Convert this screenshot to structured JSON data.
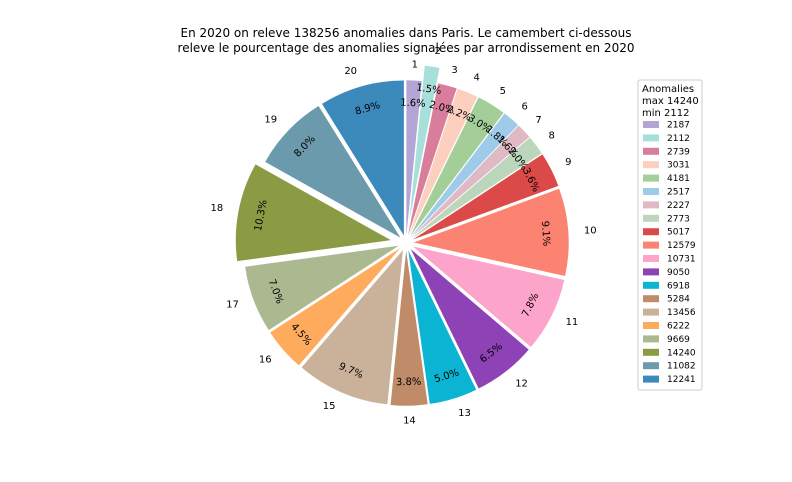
{
  "chart_data": {
    "type": "pie",
    "title_lines": [
      "En 2020 on releve 138256 anomalies dans Paris. Le camembert ci-dessous",
      "releve le pourcentage des anomalies signalées par arrondissement en 2020"
    ],
    "legend": {
      "title_lines": [
        "Anomalies",
        "max 14240",
        "min 2112"
      ],
      "placement": "right"
    },
    "categories": [
      "1",
      "2",
      "3",
      "4",
      "5",
      "6",
      "7",
      "8",
      "9",
      "10",
      "11",
      "12",
      "13",
      "14",
      "15",
      "16",
      "17",
      "18",
      "19",
      "20"
    ],
    "values": [
      2187,
      2112,
      2739,
      3031,
      4181,
      2517,
      2227,
      2773,
      5017,
      12579,
      10731,
      9050,
      6918,
      5284,
      13456,
      6222,
      9669,
      14240,
      11082,
      12241
    ],
    "value_labels": [
      "2187",
      "2112",
      "2739",
      "3031",
      "4181",
      "2517",
      "2227",
      "2773",
      "5017",
      "12579",
      "10731",
      "9050",
      "6918",
      "5284",
      "13456",
      "6222",
      "9669",
      "14240",
      "11082",
      "12241"
    ],
    "percent_labels": [
      "1.6%",
      "1.5%",
      "2.0%",
      "2.2%",
      "3.0%",
      "1.8%",
      "1.6%",
      "2.0%",
      "3.6%",
      "9.1%",
      "7.8%",
      "6.5%",
      "5.0%",
      "3.8%",
      "9.7%",
      "4.5%",
      "7.0%",
      "10.3%",
      "8.0%",
      "8.9%"
    ],
    "explode": [
      0.05,
      0.15,
      0.05,
      0.05,
      0.05,
      0.05,
      0.05,
      0.05,
      0.05,
      0.05,
      0.05,
      0.05,
      0.05,
      0.05,
      0.05,
      0.05,
      0.05,
      0.1,
      0.05,
      0.05
    ],
    "colors": [
      "#b3a5d6",
      "#a7e0da",
      "#d97e9a",
      "#fccfbf",
      "#a4ce97",
      "#9ecbe9",
      "#dfbac4",
      "#bcd6bc",
      "#db4a49",
      "#fc8372",
      "#fda4cb",
      "#8d43b5",
      "#0cb4d4",
      "#bf8b68",
      "#c9b19a",
      "#feab5e",
      "#acb990",
      "#8a9b43",
      "#6a9aab",
      "#3c8abb"
    ],
    "start_angle_deg": 90,
    "direction": "clockwise"
  }
}
